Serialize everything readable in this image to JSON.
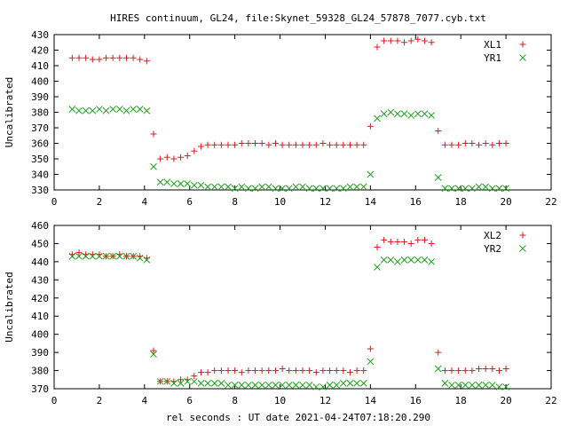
{
  "figure": {
    "title": "HIRES continuum, GL24, file:Skynet_59328_GL24_57878_7077.cyb.txt",
    "xlabel": "rel seconds : UT date 2021-04-24T07:18:20.290"
  },
  "colors": {
    "series1": "#e8141c",
    "series2": "#1aa51a",
    "frame": "#000000"
  },
  "chart_data": [
    {
      "type": "scatter",
      "title": "HIRES continuum, GL24, file:Skynet_59328_GL24_57878_7077.cyb.txt",
      "xlabel": "",
      "ylabel": "Uncalibrated",
      "xlim": [
        0,
        22
      ],
      "ylim": [
        330,
        430
      ],
      "xticks": [
        0,
        2,
        4,
        6,
        8,
        10,
        12,
        14,
        16,
        18,
        20,
        22
      ],
      "yticks": [
        330,
        340,
        350,
        360,
        370,
        380,
        390,
        400,
        410,
        420,
        430
      ],
      "grid": false,
      "legend": "top-right",
      "series": [
        {
          "name": "XL1",
          "marker": "plus",
          "color": "#e8141c",
          "x": [
            0.8,
            1.1,
            1.4,
            1.7,
            2.0,
            2.3,
            2.6,
            2.9,
            3.2,
            3.5,
            3.8,
            4.1,
            4.4,
            4.7,
            5.0,
            5.3,
            5.6,
            5.9,
            6.2,
            6.5,
            6.8,
            7.1,
            7.4,
            7.7,
            8.0,
            8.3,
            8.6,
            8.9,
            9.2,
            9.5,
            9.8,
            10.1,
            10.4,
            10.7,
            11.0,
            11.3,
            11.6,
            11.9,
            12.2,
            12.5,
            12.8,
            13.1,
            13.4,
            13.7,
            14.0,
            14.3,
            14.6,
            14.9,
            15.2,
            15.5,
            15.8,
            16.1,
            16.4,
            16.7,
            17.0,
            17.3,
            17.6,
            17.9,
            18.2,
            18.5,
            18.8,
            19.1,
            19.4,
            19.7,
            20.0
          ],
          "y": [
            415,
            415,
            415,
            414,
            414,
            415,
            415,
            415,
            415,
            415,
            414,
            413,
            366,
            350,
            351,
            350,
            351,
            352,
            355,
            358,
            359,
            359,
            359,
            359,
            359,
            360,
            360,
            360,
            360,
            359,
            360,
            359,
            359,
            359,
            359,
            359,
            359,
            360,
            359,
            359,
            359,
            359,
            359,
            359,
            371,
            422,
            426,
            426,
            426,
            425,
            426,
            427,
            426,
            425,
            368,
            359,
            359,
            359,
            360,
            360,
            359,
            360,
            359,
            360,
            360
          ]
        },
        {
          "name": "YR1",
          "marker": "cross",
          "color": "#1aa51a",
          "x": [
            0.8,
            1.1,
            1.4,
            1.7,
            2.0,
            2.3,
            2.6,
            2.9,
            3.2,
            3.5,
            3.8,
            4.1,
            4.4,
            4.7,
            5.0,
            5.3,
            5.6,
            5.9,
            6.2,
            6.5,
            6.8,
            7.1,
            7.4,
            7.7,
            8.0,
            8.3,
            8.6,
            8.9,
            9.2,
            9.5,
            9.8,
            10.1,
            10.4,
            10.7,
            11.0,
            11.3,
            11.6,
            11.9,
            12.2,
            12.5,
            12.8,
            13.1,
            13.4,
            13.7,
            14.0,
            14.3,
            14.6,
            14.9,
            15.2,
            15.5,
            15.8,
            16.1,
            16.4,
            16.7,
            17.0,
            17.3,
            17.6,
            17.9,
            18.2,
            18.5,
            18.8,
            19.1,
            19.4,
            19.7,
            20.0
          ],
          "y": [
            382,
            381,
            381,
            381,
            382,
            381,
            382,
            382,
            381,
            382,
            382,
            381,
            345,
            335,
            335,
            334,
            334,
            334,
            333,
            333,
            332,
            332,
            332,
            332,
            331,
            332,
            331,
            331,
            332,
            332,
            331,
            331,
            331,
            332,
            332,
            331,
            331,
            331,
            331,
            331,
            331,
            332,
            332,
            332,
            340,
            376,
            379,
            380,
            379,
            379,
            378,
            379,
            379,
            378,
            338,
            331,
            331,
            331,
            331,
            331,
            332,
            332,
            331,
            331,
            331
          ]
        }
      ]
    },
    {
      "type": "scatter",
      "title": "",
      "xlabel": "rel seconds : UT date 2021-04-24T07:18:20.290",
      "ylabel": "Uncalibrated",
      "xlim": [
        0,
        22
      ],
      "ylim": [
        370,
        460
      ],
      "xticks": [
        0,
        2,
        4,
        6,
        8,
        10,
        12,
        14,
        16,
        18,
        20,
        22
      ],
      "yticks": [
        370,
        380,
        390,
        400,
        410,
        420,
        430,
        440,
        450,
        460
      ],
      "grid": false,
      "legend": "top-right",
      "series": [
        {
          "name": "XL2",
          "marker": "plus",
          "color": "#e8141c",
          "x": [
            0.8,
            1.1,
            1.4,
            1.7,
            2.0,
            2.3,
            2.6,
            2.9,
            3.2,
            3.5,
            3.8,
            4.1,
            4.4,
            4.7,
            5.0,
            5.3,
            5.6,
            5.9,
            6.2,
            6.5,
            6.8,
            7.1,
            7.4,
            7.7,
            8.0,
            8.3,
            8.6,
            8.9,
            9.2,
            9.5,
            9.8,
            10.1,
            10.4,
            10.7,
            11.0,
            11.3,
            11.6,
            11.9,
            12.2,
            12.5,
            12.8,
            13.1,
            13.4,
            13.7,
            14.0,
            14.3,
            14.6,
            14.9,
            15.2,
            15.5,
            15.8,
            16.1,
            16.4,
            16.7,
            17.0,
            17.3,
            17.6,
            17.9,
            18.2,
            18.5,
            18.8,
            19.1,
            19.4,
            19.7,
            20.0
          ],
          "y": [
            444,
            445,
            444,
            444,
            444,
            443,
            443,
            444,
            443,
            443,
            443,
            442,
            391,
            374,
            374,
            374,
            375,
            375,
            377,
            379,
            379,
            380,
            380,
            380,
            380,
            379,
            380,
            380,
            380,
            380,
            380,
            381,
            380,
            380,
            380,
            380,
            379,
            380,
            380,
            380,
            380,
            379,
            380,
            380,
            392,
            448,
            452,
            451,
            451,
            451,
            450,
            452,
            452,
            450,
            390,
            380,
            380,
            380,
            380,
            380,
            381,
            381,
            381,
            380,
            381
          ]
        },
        {
          "name": "YR2",
          "marker": "cross",
          "color": "#1aa51a",
          "x": [
            0.8,
            1.1,
            1.4,
            1.7,
            2.0,
            2.3,
            2.6,
            2.9,
            3.2,
            3.5,
            3.8,
            4.1,
            4.4,
            4.7,
            5.0,
            5.3,
            5.6,
            5.9,
            6.2,
            6.5,
            6.8,
            7.1,
            7.4,
            7.7,
            8.0,
            8.3,
            8.6,
            8.9,
            9.2,
            9.5,
            9.8,
            10.1,
            10.4,
            10.7,
            11.0,
            11.3,
            11.6,
            11.9,
            12.2,
            12.5,
            12.8,
            13.1,
            13.4,
            13.7,
            14.0,
            14.3,
            14.6,
            14.9,
            15.2,
            15.5,
            15.8,
            16.1,
            16.4,
            16.7,
            17.0,
            17.3,
            17.6,
            17.9,
            18.2,
            18.5,
            18.8,
            19.1,
            19.4,
            19.7,
            20.0
          ],
          "y": [
            443,
            443,
            443,
            443,
            443,
            443,
            443,
            443,
            443,
            443,
            442,
            441,
            389,
            374,
            374,
            373,
            373,
            374,
            374,
            373,
            373,
            373,
            373,
            372,
            372,
            372,
            372,
            372,
            372,
            372,
            372,
            372,
            372,
            372,
            372,
            372,
            371,
            371,
            372,
            372,
            373,
            373,
            373,
            373,
            385,
            437,
            441,
            441,
            440,
            441,
            441,
            441,
            441,
            440,
            381,
            373,
            372,
            372,
            372,
            372,
            372,
            372,
            372,
            371,
            371
          ]
        }
      ]
    }
  ]
}
